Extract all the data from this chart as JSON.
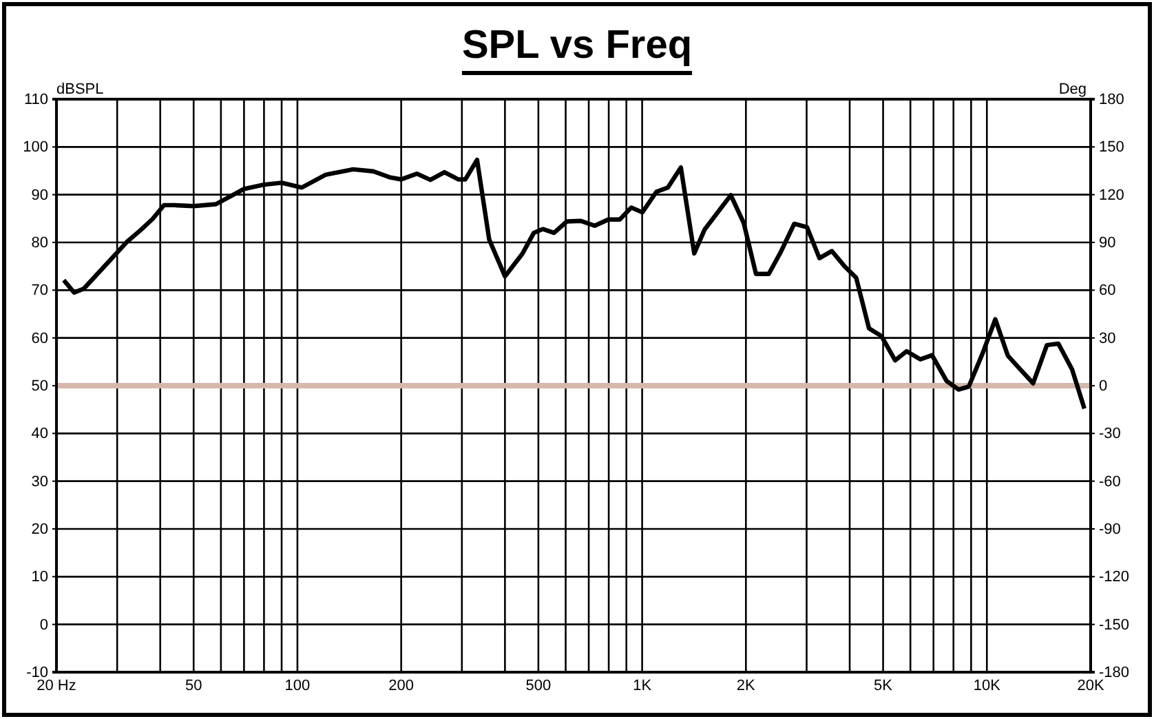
{
  "chart_data": {
    "type": "line",
    "title": "SPL vs Freq",
    "ylabel": "dBSPL",
    "y2label": "Deg",
    "log": "x",
    "grid": true,
    "line_style": "solid",
    "marker": "none",
    "xlim": [
      20,
      20000
    ],
    "xticks": [
      {
        "value": 20,
        "label": "20  Hz"
      },
      {
        "value": 30,
        "label": null
      },
      {
        "value": 40,
        "label": null
      },
      50,
      {
        "value": 60,
        "label": null
      },
      {
        "value": 70,
        "label": null
      },
      {
        "value": 80,
        "label": null
      },
      {
        "value": 90,
        "label": null
      },
      100,
      200,
      {
        "value": 300,
        "label": null
      },
      {
        "value": 400,
        "label": null
      },
      500,
      {
        "value": 600,
        "label": null
      },
      {
        "value": 700,
        "label": null
      },
      {
        "value": 800,
        "label": null
      },
      {
        "value": 900,
        "label": null
      },
      {
        "value": 1000,
        "label": "1K"
      },
      {
        "value": 2000,
        "label": "2K"
      },
      {
        "value": 3000,
        "label": null
      },
      {
        "value": 4000,
        "label": null
      },
      {
        "value": 5000,
        "label": "5K"
      },
      {
        "value": 6000,
        "label": null
      },
      {
        "value": 7000,
        "label": null
      },
      {
        "value": 8000,
        "label": null
      },
      {
        "value": 9000,
        "label": null
      },
      {
        "value": 10000,
        "label": "10K"
      },
      {
        "value": 20000,
        "label": "20K"
      }
    ],
    "ylim": [
      -10,
      110
    ],
    "yticks": [
      -10,
      0,
      10,
      20,
      30,
      40,
      50,
      60,
      70,
      80,
      90,
      100,
      110
    ],
    "y2lim": [
      -180,
      180
    ],
    "y2ticks": [
      -180,
      -150,
      -120,
      -90,
      -60,
      -30,
      0,
      30,
      60,
      90,
      120,
      150,
      180
    ],
    "ref_lines": [
      {
        "axis": "y2",
        "value": 0,
        "color": "#d4b8ac"
      }
    ],
    "series": [
      {
        "color": "#000000",
        "x": [
          21,
          22.5,
          24,
          27,
          32,
          35,
          38,
          41,
          44,
          50,
          58,
          70,
          80,
          90,
          103,
          121,
          145,
          166,
          186,
          200,
          222,
          243,
          267,
          293,
          307,
          332,
          360,
          400,
          450,
          485,
          515,
          555,
          605,
          664,
          728,
          798,
          861,
          930,
          1002,
          1100,
          1188,
          1295,
          1416,
          1518,
          1808,
          1970,
          2139,
          2330,
          2520,
          2762,
          3008,
          3268,
          3550,
          3865,
          4177,
          4550,
          4943,
          5418,
          5850,
          6413,
          6930,
          7640,
          8280,
          8860,
          9710,
          10580,
          11500,
          12500,
          13620,
          14930,
          16120,
          17670,
          19180
        ],
        "values": [
          72.1,
          69.5,
          70.3,
          74.3,
          80.1,
          82.5,
          84.9,
          87.8,
          87.8,
          87.6,
          88,
          91.2,
          92.1,
          92.5,
          91.5,
          94.2,
          95.3,
          94.9,
          93.6,
          93.2,
          94.4,
          93.1,
          94.7,
          93.2,
          93.2,
          97.3,
          80.6,
          72.9,
          77.7,
          82,
          82.8,
          82,
          84.4,
          84.5,
          83.5,
          84.8,
          84.8,
          87.3,
          86.3,
          90.6,
          91.5,
          95.7,
          77.7,
          82.7,
          89.9,
          84.1,
          73.4,
          73.4,
          77.9,
          83.9,
          83.2,
          76.7,
          78.2,
          75,
          72.6,
          62,
          60.4,
          55.3,
          57.2,
          55.5,
          56.4,
          51,
          49.2,
          49.8,
          56.7,
          63.9,
          56.3,
          53.4,
          50.5,
          58.5,
          58.8,
          53.4,
          45.2
        ]
      }
    ]
  }
}
